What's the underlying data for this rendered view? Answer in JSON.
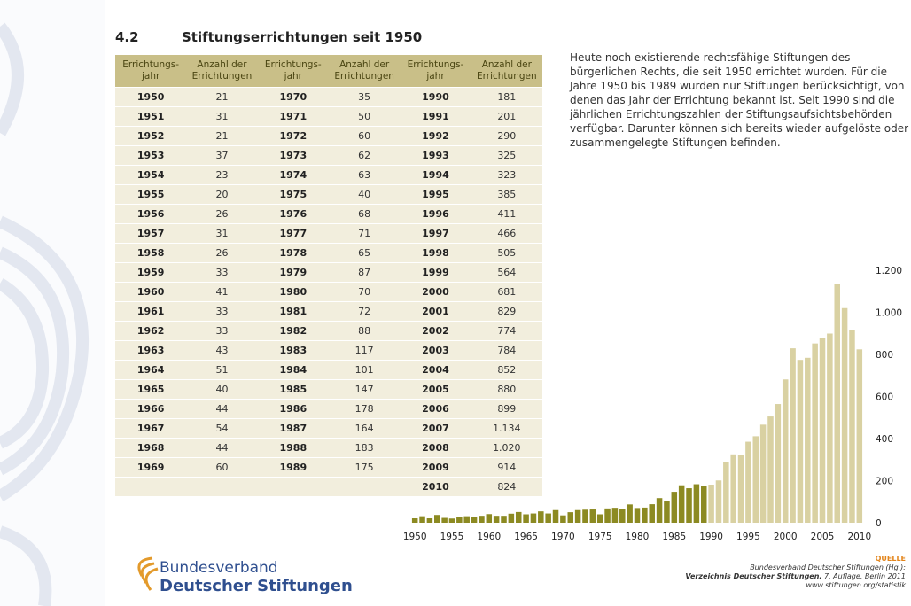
{
  "header": {
    "number": "4.2",
    "title": "Stiftungserrichtungen seit 1950"
  },
  "table": {
    "headers": [
      [
        "Errichtungs-",
        "jahr"
      ],
      [
        "Anzahl der",
        "Errichtungen"
      ],
      [
        "Errichtungs-",
        "jahr"
      ],
      [
        "Anzahl der",
        "Errichtungen"
      ],
      [
        "Errichtungs-",
        "jahr"
      ],
      [
        "Anzahl der",
        "Errichtungen"
      ]
    ],
    "rows": [
      [
        "1950",
        "21",
        "1970",
        "35",
        "1990",
        "181"
      ],
      [
        "1951",
        "31",
        "1971",
        "50",
        "1991",
        "201"
      ],
      [
        "1952",
        "21",
        "1972",
        "60",
        "1992",
        "290"
      ],
      [
        "1953",
        "37",
        "1973",
        "62",
        "1993",
        "325"
      ],
      [
        "1954",
        "23",
        "1974",
        "63",
        "1994",
        "323"
      ],
      [
        "1955",
        "20",
        "1975",
        "40",
        "1995",
        "385"
      ],
      [
        "1956",
        "26",
        "1976",
        "68",
        "1996",
        "411"
      ],
      [
        "1957",
        "31",
        "1977",
        "71",
        "1997",
        "466"
      ],
      [
        "1958",
        "26",
        "1978",
        "65",
        "1998",
        "505"
      ],
      [
        "1959",
        "33",
        "1979",
        "87",
        "1999",
        "564"
      ],
      [
        "1960",
        "41",
        "1980",
        "70",
        "2000",
        "681"
      ],
      [
        "1961",
        "33",
        "1981",
        "72",
        "2001",
        "829"
      ],
      [
        "1962",
        "33",
        "1982",
        "88",
        "2002",
        "774"
      ],
      [
        "1963",
        "43",
        "1983",
        "117",
        "2003",
        "784"
      ],
      [
        "1964",
        "51",
        "1984",
        "101",
        "2004",
        "852"
      ],
      [
        "1965",
        "40",
        "1985",
        "147",
        "2005",
        "880"
      ],
      [
        "1966",
        "44",
        "1986",
        "178",
        "2006",
        "899"
      ],
      [
        "1967",
        "54",
        "1987",
        "164",
        "2007",
        "1.134"
      ],
      [
        "1968",
        "44",
        "1988",
        "183",
        "2008",
        "1.020"
      ],
      [
        "1969",
        "60",
        "1989",
        "175",
        "2009",
        "914"
      ],
      [
        null,
        null,
        null,
        null,
        "2010",
        "824"
      ]
    ]
  },
  "description": [
    "Heute noch existierende rechtsfähige Stiftungen des",
    "bürgerlichen Rechts, die seit 1950 errichtet wurden. Für die",
    "Jahre 1950 bis 1989 wurden nur Stiftungen berücksichtigt, von",
    "denen das Jahr der Errichtung bekannt ist. Seit 1990 sind die",
    "jährlichen Errichtungszahlen der Stiftungsaufsichtsbehörden",
    "verfügbar. Darunter können sich bereits wieder aufgelöste oder",
    "zusammengelegte Stiftungen befinden."
  ],
  "chart_data": {
    "type": "bar",
    "series": [
      {
        "color": "#8c8a22",
        "x": [
          1950,
          1951,
          1952,
          1953,
          1954,
          1955,
          1956,
          1957,
          1958,
          1959,
          1960,
          1961,
          1962,
          1963,
          1964,
          1965,
          1966,
          1967,
          1968,
          1969,
          1970,
          1971,
          1972,
          1973,
          1974,
          1975,
          1976,
          1977,
          1978,
          1979,
          1980,
          1981,
          1982,
          1983,
          1984,
          1985,
          1986,
          1987,
          1988,
          1989
        ],
        "values": [
          21,
          31,
          21,
          37,
          23,
          20,
          26,
          31,
          26,
          33,
          41,
          33,
          33,
          43,
          51,
          40,
          44,
          54,
          44,
          60,
          35,
          50,
          60,
          62,
          63,
          40,
          68,
          71,
          65,
          87,
          70,
          72,
          88,
          117,
          101,
          147,
          178,
          164,
          183,
          175
        ]
      },
      {
        "color": "#d9d1a2",
        "x": [
          1990,
          1991,
          1992,
          1993,
          1994,
          1995,
          1996,
          1997,
          1998,
          1999,
          2000,
          2001,
          2002,
          2003,
          2004,
          2005,
          2006,
          2007,
          2008,
          2009,
          2010
        ],
        "values": [
          181,
          201,
          290,
          325,
          323,
          385,
          411,
          466,
          505,
          564,
          681,
          829,
          774,
          784,
          852,
          880,
          899,
          1134,
          1020,
          914,
          824
        ]
      }
    ],
    "xlim": [
      1949.5,
      2010.5
    ],
    "xticks": [
      1950,
      1955,
      1960,
      1965,
      1970,
      1975,
      1980,
      1985,
      1990,
      1995,
      2000,
      2005,
      2010
    ],
    "ylim": [
      0,
      1200
    ],
    "yticks": [
      0,
      200,
      400,
      600,
      800,
      1000,
      {
        "value": 1000,
        "label": "1.000"
      },
      {
        "value": 1200,
        "label": "1.200"
      }
    ]
  },
  "logo": {
    "line1": "Bundesverband",
    "line2": "Deutscher Stiftungen"
  },
  "source": {
    "label": "QUELLE",
    "line1": "Bundesverband Deutscher Stiftungen (Hg.):",
    "line2_bold": "Verzeichnis Deutscher Stiftungen.",
    "line2_rest": " 7. Auflage, Berlin 2011",
    "line3": "www.stiftungen.org/statistik"
  }
}
